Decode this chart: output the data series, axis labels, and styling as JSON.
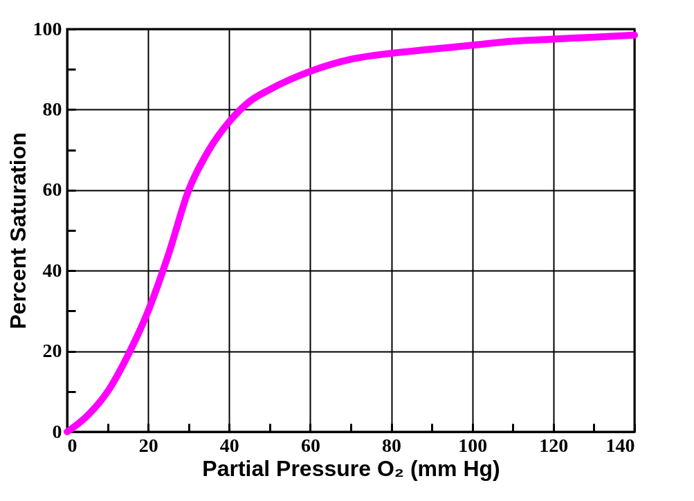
{
  "chart_data": {
    "type": "line",
    "xlabel": "Partial Pressure O₂ (mm Hg)",
    "ylabel": "Percent Saturation",
    "x": [
      0,
      5,
      10,
      15,
      20,
      25,
      30,
      35,
      40,
      45,
      50,
      60,
      70,
      80,
      90,
      100,
      110,
      120,
      130,
      140
    ],
    "series": [
      {
        "color": "#ff00ff",
        "values": [
          0,
          4,
          10,
          19,
          30,
          44,
          60,
          70,
          77,
          82,
          85,
          89.5,
          92.5,
          94,
          95,
          96,
          97,
          97.5,
          98,
          98.5
        ]
      }
    ],
    "xlim": [
      0,
      140
    ],
    "ylim": [
      0,
      100
    ],
    "xticks": [
      0,
      {
        "value": 10,
        "label": null
      },
      20,
      {
        "value": 30,
        "label": null
      },
      40,
      {
        "value": 50,
        "label": null
      },
      60,
      {
        "value": 70,
        "label": null
      },
      80,
      {
        "value": 90,
        "label": null
      },
      100,
      {
        "value": 110,
        "label": null
      },
      120,
      {
        "value": 130,
        "label": null
      },
      140
    ],
    "yticks": [
      0,
      {
        "value": 10,
        "label": null
      },
      20,
      {
        "value": 30,
        "label": null
      },
      40,
      {
        "value": 50,
        "label": null
      },
      60,
      {
        "value": 70,
        "label": null
      },
      80,
      {
        "value": 90,
        "label": null
      },
      100
    ],
    "grid": true,
    "legend": false,
    "marker": "none",
    "line_style": "solid"
  }
}
